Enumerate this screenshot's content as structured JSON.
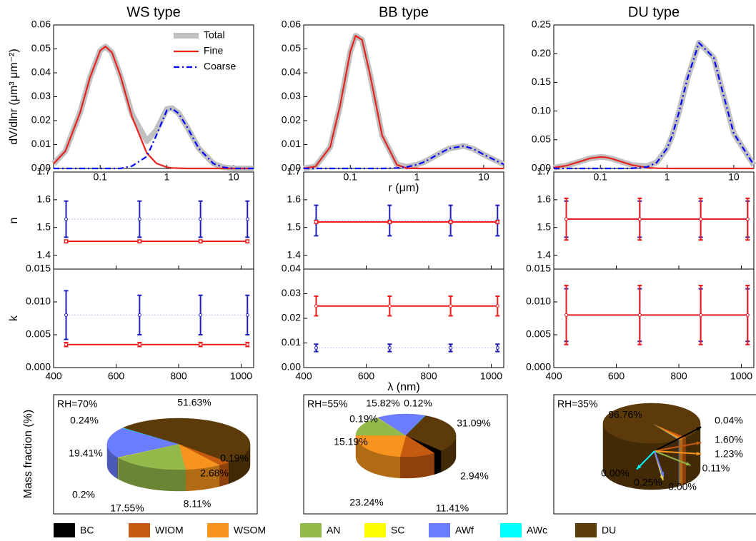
{
  "chart_data": [
    {
      "type": "line",
      "title": "WS type",
      "ylabel": "dV/dlnr (μm³ μm⁻²)",
      "xlog": true,
      "xlim": [
        0.02,
        20
      ],
      "xticks": [
        0.1,
        1,
        10
      ],
      "ylim": [
        0,
        0.06
      ],
      "yticks": [
        {
          "value": 0,
          "label": "0.00"
        },
        0.01,
        0.02,
        0.03,
        0.04,
        0.05,
        0.06
      ],
      "legend": "upper right",
      "x": [
        0.02,
        0.03,
        0.05,
        0.07,
        0.1,
        0.12,
        0.15,
        0.2,
        0.3,
        0.5,
        0.7,
        1,
        1.2,
        1.5,
        2,
        3,
        5,
        7,
        10,
        20
      ],
      "series": [
        {
          "name": "Total",
          "color": "#c0c0c0",
          "values": [
            0.002,
            0.0072,
            0.0234,
            0.0379,
            0.0493,
            0.051,
            0.0485,
            0.039,
            0.0226,
            0.0114,
            0.0161,
            0.0249,
            0.0252,
            0.0231,
            0.0174,
            0.0084,
            0.002,
            0.0005,
            0,
            0
          ]
        },
        {
          "name": "Fine",
          "color": "#e8221e",
          "values": [
            0.002,
            0.0072,
            0.0234,
            0.0379,
            0.0493,
            0.051,
            0.0485,
            0.039,
            0.0216,
            0.0064,
            0.0021,
            0.0005,
            0.0002,
            0.0001,
            0,
            0,
            0,
            0,
            0,
            0
          ]
        },
        {
          "name": "Coarse",
          "color": "#0000ff",
          "values": [
            0,
            0,
            0,
            0,
            0,
            0,
            0,
            0,
            0.001,
            0.005,
            0.014,
            0.0244,
            0.025,
            0.023,
            0.0174,
            0.0084,
            0.002,
            0.0005,
            0,
            0
          ]
        }
      ]
    },
    {
      "type": "line",
      "title": "BB type",
      "xlabel": "r (μm)",
      "xlog": true,
      "xlim": [
        0.02,
        20
      ],
      "xticks": [
        0.1,
        1,
        10
      ],
      "ylim": [
        0,
        0.06
      ],
      "yticks": [
        {
          "value": 0,
          "label": "0.00"
        },
        0.01,
        0.02,
        0.03,
        0.04,
        0.05,
        0.06
      ],
      "x": [
        0.02,
        0.03,
        0.05,
        0.07,
        0.1,
        0.12,
        0.15,
        0.2,
        0.3,
        0.5,
        0.7,
        1,
        1.2,
        1.5,
        2,
        3,
        5,
        7,
        10,
        20
      ],
      "series": [
        {
          "color": "#c0c0c0",
          "values": [
            0,
            0.0008,
            0.009,
            0.026,
            0.0488,
            0.0555,
            0.0538,
            0.0386,
            0.0138,
            0.0017,
            0.0007,
            0.0016,
            0.0024,
            0.0037,
            0.0057,
            0.0083,
            0.0094,
            0.0082,
            0.0058,
            0.0017
          ]
        },
        {
          "color": "#e8221e",
          "values": [
            0,
            0.0008,
            0.009,
            0.026,
            0.0488,
            0.0555,
            0.0538,
            0.0386,
            0.0138,
            0.0015,
            0.0001,
            0,
            0,
            0,
            0,
            0,
            0,
            0,
            0,
            0
          ]
        },
        {
          "color": "#0000ff",
          "values": [
            0,
            0,
            0,
            0,
            0,
            0,
            0,
            0,
            0,
            0.0002,
            0.0006,
            0.0016,
            0.0024,
            0.0037,
            0.0057,
            0.0083,
            0.0094,
            0.0082,
            0.0058,
            0.0017
          ]
        }
      ]
    },
    {
      "type": "line",
      "title": "DU type",
      "xlog": true,
      "xlim": [
        0.02,
        20
      ],
      "xticks": [
        0.1,
        1,
        10
      ],
      "ylim": [
        0,
        0.25
      ],
      "yticks": [
        {
          "value": 0,
          "label": "0.00"
        },
        0.05,
        {
          "value": 0.1,
          "label": "0.10"
        },
        0.15,
        {
          "value": 0.2,
          "label": "0.20"
        },
        0.25
      ],
      "x": [
        0.02,
        0.03,
        0.05,
        0.07,
        0.1,
        0.12,
        0.15,
        0.2,
        0.3,
        0.5,
        0.7,
        1,
        1.2,
        1.5,
        2,
        3,
        5,
        7,
        10,
        20
      ],
      "series": [
        {
          "color": "#c0c0c0",
          "values": [
            0.0014,
            0.0045,
            0.0122,
            0.0176,
            0.02,
            0.0193,
            0.0169,
            0.0122,
            0.006,
            0.0039,
            0.0108,
            0.0351,
            0.058,
            0.097,
            0.155,
            0.219,
            0.193,
            0.128,
            0.061,
            0.006
          ]
        },
        {
          "color": "#e8221e",
          "values": [
            0.0014,
            0.0045,
            0.0122,
            0.0176,
            0.02,
            0.0193,
            0.0169,
            0.0122,
            0.0058,
            0.0014,
            0.0004,
            0.0001,
            0,
            0,
            0,
            0,
            0,
            0,
            0,
            0
          ]
        },
        {
          "color": "#0000ff",
          "values": [
            0,
            0,
            0,
            0,
            0,
            0,
            0,
            0,
            0.0002,
            0.0025,
            0.0104,
            0.035,
            0.058,
            0.097,
            0.155,
            0.219,
            0.193,
            0.128,
            0.061,
            0.006
          ]
        }
      ]
    },
    {
      "type": "errorbar",
      "ylabel": "n",
      "x": [
        440,
        675,
        870,
        1020
      ],
      "xlim": [
        400,
        1040
      ],
      "xticks": [
        400,
        600,
        800,
        1000
      ],
      "xticklabels": false,
      "ylim": [
        1.35,
        1.7
      ],
      "yticks": [
        1.4,
        1.5,
        1.6,
        1.7
      ],
      "series": [
        {
          "color": "#ee1c1c",
          "values": [
            1.45,
            1.45,
            1.45,
            1.45
          ],
          "errors": [
            0.005,
            0.005,
            0.005,
            0.005
          ]
        },
        {
          "color": "#1f1fbf",
          "values": [
            1.53,
            1.53,
            1.53,
            1.53
          ],
          "errors": [
            0.065,
            0.065,
            0.065,
            0.065
          ]
        }
      ]
    },
    {
      "type": "errorbar",
      "x": [
        440,
        675,
        870,
        1020
      ],
      "xlim": [
        400,
        1040
      ],
      "xticks": [
        400,
        600,
        800,
        1000
      ],
      "xticklabels": false,
      "ylim": [
        1.35,
        1.7
      ],
      "yticks": [
        1.4,
        1.5,
        1.6,
        1.7
      ],
      "series": [
        {
          "color": "#ee1c1c",
          "values": [
            1.52,
            1.52,
            1.52,
            1.52
          ],
          "errors": [
            0.005,
            0.005,
            0.005,
            0.005
          ]
        },
        {
          "color": "#1f1fbf",
          "values": [
            1.525,
            1.525,
            1.525,
            1.525
          ],
          "errors": [
            0.055,
            0.055,
            0.055,
            0.055
          ]
        }
      ]
    },
    {
      "type": "errorbar",
      "x": [
        440,
        675,
        870,
        1020
      ],
      "xlim": [
        400,
        1040
      ],
      "xticks": [
        400,
        600,
        800,
        1000
      ],
      "xticklabels": false,
      "ylim": [
        1.35,
        1.7
      ],
      "yticks": [
        1.4,
        1.5,
        1.6,
        1.7
      ],
      "series": [
        {
          "color": "#ee1c1c",
          "values": [
            1.53,
            1.53,
            1.53,
            1.53
          ],
          "errors": [
            0.075,
            0.075,
            0.075,
            0.075
          ]
        },
        {
          "color": "#1f1fbf",
          "values": [
            1.53,
            1.53,
            1.53,
            1.53
          ],
          "errors": [
            0.065,
            0.065,
            0.065,
            0.065
          ]
        }
      ]
    },
    {
      "type": "errorbar",
      "ylabel": "k",
      "x": [
        440,
        675,
        870,
        1020
      ],
      "xlim": [
        400,
        1040
      ],
      "xticks": [
        400,
        600,
        800,
        1000
      ],
      "ylim": [
        0,
        0.015
      ],
      "yticks": [
        {
          "value": 0,
          "label": "0.000"
        },
        0.005,
        {
          "value": 0.01,
          "label": "0.010"
        },
        0.015
      ],
      "series": [
        {
          "color": "#ee1c1c",
          "values": [
            0.0035,
            0.0035,
            0.0035,
            0.0035
          ],
          "errors": [
            0.0003,
            0.0003,
            0.0003,
            0.0003
          ]
        },
        {
          "color": "#1f1fbf",
          "values": [
            0.008,
            0.008,
            0.008,
            0.008
          ],
          "errors": [
            0.0037,
            0.003,
            0.003,
            0.003
          ]
        }
      ]
    },
    {
      "type": "errorbar",
      "xlabel": "λ (nm)",
      "x": [
        440,
        675,
        870,
        1020
      ],
      "xlim": [
        400,
        1040
      ],
      "xticks": [
        400,
        600,
        800,
        1000
      ],
      "ylim": [
        0,
        0.04
      ],
      "yticks": [
        {
          "value": 0,
          "label": "0.00"
        },
        0.01,
        0.02,
        0.03,
        0.04
      ],
      "series": [
        {
          "color": "#ee1c1c",
          "values": [
            0.025,
            0.025,
            0.025,
            0.025
          ],
          "errors": [
            0.004,
            0.004,
            0.004,
            0.004
          ]
        },
        {
          "color": "#1f1fbf",
          "values": [
            0.008,
            0.008,
            0.008,
            0.008
          ],
          "errors": [
            0.0015,
            0.0015,
            0.0015,
            0.0015
          ]
        }
      ]
    },
    {
      "type": "errorbar",
      "x": [
        440,
        675,
        870,
        1020
      ],
      "xlim": [
        400,
        1040
      ],
      "xticks": [
        400,
        600,
        800,
        1000
      ],
      "ylim": [
        0,
        0.015
      ],
      "yticks": [
        {
          "value": 0,
          "label": "0.000"
        },
        0.005,
        {
          "value": 0.01,
          "label": "0.010"
        },
        0.015
      ],
      "series": [
        {
          "color": "#ee1c1c",
          "values": [
            0.008,
            0.008,
            0.008,
            0.008
          ],
          "errors": [
            0.0045,
            0.0045,
            0.0045,
            0.0045
          ]
        },
        {
          "color": "#1f1fbf",
          "values": [
            0.008,
            0.008,
            0.008,
            0.008
          ],
          "errors": [
            0.004,
            0.004,
            0.004,
            0.004
          ]
        }
      ]
    },
    {
      "type": "pie",
      "ylabel": "Mass fraction (%)",
      "categories": [
        "BC",
        "WIOM",
        "WSOM",
        "AN",
        "SC",
        "AWf",
        "AWc",
        "DU"
      ],
      "colors": [
        "#000000",
        "#c55a11",
        "#f7941d",
        "#92b94a",
        "#ffff00",
        "#6b7cff",
        "#00ffff",
        "#5c3a0a"
      ],
      "panels": [
        {
          "annotation": "RH=70%",
          "values": [
            0.19,
            2.68,
            8.11,
            17.55,
            0.2,
            19.41,
            0.24,
            51.63
          ],
          "value_labels": [
            "0.19%",
            "2.68%",
            "8.11%",
            "17.55%",
            "0.2%",
            "19.41%",
            "0.24%",
            "51.63%"
          ]
        },
        {
          "annotation": "RH=55%",
          "values": [
            2.94,
            11.41,
            23.24,
            15.19,
            0.19,
            15.82,
            0.12,
            31.09
          ],
          "value_labels": [
            "2.94%",
            "11.41%",
            "23.24%",
            "15.19%",
            "0.19%",
            "15.82%",
            "0.12%",
            "31.09%"
          ]
        },
        {
          "annotation": "RH=35%",
          "values": [
            0.04,
            1.6,
            1.23,
            0.11,
            0,
            0.25,
            0,
            96.76
          ],
          "value_labels": [
            "0.04%",
            "1.60%",
            "1.23%",
            "0.11%",
            "0.00%",
            "0.25%",
            "0.00%",
            "96.76%"
          ]
        }
      ]
    }
  ]
}
